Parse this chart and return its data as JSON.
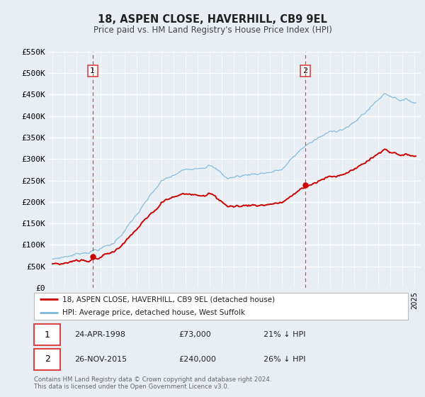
{
  "title": "18, ASPEN CLOSE, HAVERHILL, CB9 9EL",
  "subtitle": "Price paid vs. HM Land Registry's House Price Index (HPI)",
  "ylim": [
    0,
    550000
  ],
  "xlim_start": 1994.7,
  "xlim_end": 2025.5,
  "yticks": [
    0,
    50000,
    100000,
    150000,
    200000,
    250000,
    300000,
    350000,
    400000,
    450000,
    500000,
    550000
  ],
  "ytick_labels": [
    "£0",
    "£50K",
    "£100K",
    "£150K",
    "£200K",
    "£250K",
    "£300K",
    "£350K",
    "£400K",
    "£450K",
    "£500K",
    "£550K"
  ],
  "hpi_color": "#7ab8d9",
  "price_color": "#cc0000",
  "vline_color": "#dd4444",
  "marker_color": "#cc0000",
  "background_color": "#e8eef4",
  "chart_bg_color": "#e8eef4",
  "grid_color": "#ffffff",
  "sale1_year": 1998.32,
  "sale1_price": 73000,
  "sale1_label": "1",
  "sale1_date": "24-APR-1998",
  "sale1_amt": "£73,000",
  "sale1_pct": "21% ↓ HPI",
  "sale2_year": 2015.92,
  "sale2_price": 240000,
  "sale2_label": "2",
  "sale2_date": "26-NOV-2015",
  "sale2_amt": "£240,000",
  "sale2_pct": "26% ↓ HPI",
  "legend_line1": "18, ASPEN CLOSE, HAVERHILL, CB9 9EL (detached house)",
  "legend_line2": "HPI: Average price, detached house, West Suffolk",
  "footnote1": "Contains HM Land Registry data © Crown copyright and database right 2024.",
  "footnote2": "This data is licensed under the Open Government Licence v3.0."
}
